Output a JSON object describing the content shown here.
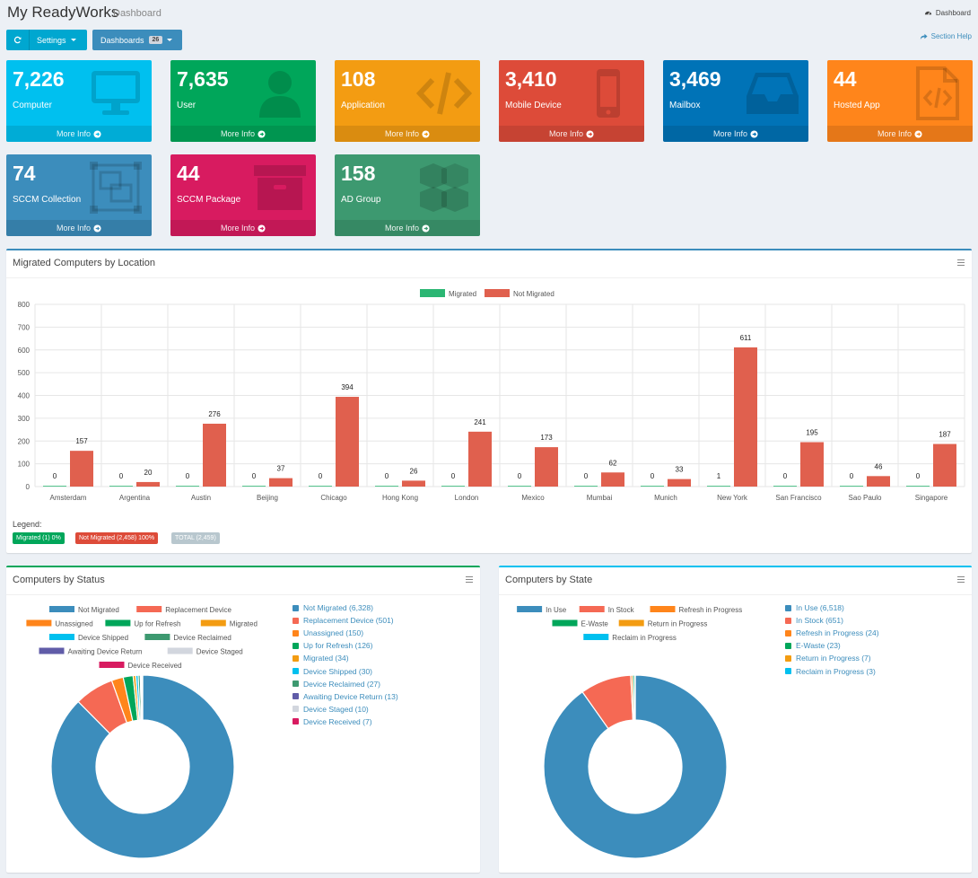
{
  "header": {
    "title": "My ReadyWorks",
    "subtitle": "Dashboard",
    "breadcrumb": "Dashboard"
  },
  "toolbar": {
    "settings_label": "Settings",
    "dashboards_label": "Dashboards",
    "dashboards_count": "26",
    "help_label": "Section Help"
  },
  "tiles": [
    {
      "value": "7,226",
      "label": "Computer",
      "more": "More Info",
      "color": "#00c0ef",
      "icon": "monitor-icon"
    },
    {
      "value": "7,635",
      "label": "User",
      "more": "More Info",
      "color": "#00a65a",
      "icon": "user-icon"
    },
    {
      "value": "108",
      "label": "Application",
      "more": "More Info",
      "color": "#f39c12",
      "icon": "code-icon"
    },
    {
      "value": "3,410",
      "label": "Mobile Device",
      "more": "More Info",
      "color": "#dd4b39",
      "icon": "mobile-icon"
    },
    {
      "value": "3,469",
      "label": "Mailbox",
      "more": "More Info",
      "color": "#0073b7",
      "icon": "inbox-icon"
    },
    {
      "value": "44",
      "label": "Hosted App",
      "more": "More Info",
      "color": "#ff851b",
      "icon": "file-code-icon"
    },
    {
      "value": "74",
      "label": "SCCM Collection",
      "more": "More Info",
      "color": "#3c8dbc",
      "icon": "object-group-icon"
    },
    {
      "value": "44",
      "label": "SCCM Package",
      "more": "More Info",
      "color": "#d81b60",
      "icon": "archive-icon"
    },
    {
      "value": "158",
      "label": "AD Group",
      "more": "More Info",
      "color": "#3d9970",
      "icon": "cubes-icon"
    }
  ],
  "location_box": {
    "title": "Migrated Computers by Location",
    "legend_label": "Legend:",
    "pills": [
      {
        "text": "Migrated (1)  0%",
        "color": "#00a65a"
      },
      {
        "text": "Not Migrated (2,458)  100%",
        "color": "#dd4b39"
      },
      {
        "text": "TOTAL (2,459)",
        "color": "#b8c7ce"
      }
    ]
  },
  "status_box": {
    "title": "Computers by Status",
    "items": [
      {
        "label": "Not Migrated (6,328)"
      },
      {
        "label": "Replacement Device (501)"
      },
      {
        "label": "Unassigned (150)"
      },
      {
        "label": "Up for Refresh (126)"
      },
      {
        "label": "Migrated (34)"
      },
      {
        "label": "Device Shipped (30)"
      },
      {
        "label": "Device Reclaimed (27)"
      },
      {
        "label": "Awaiting Device Return (13)"
      },
      {
        "label": "Device Staged (10)"
      },
      {
        "label": "Device Received (7)"
      }
    ]
  },
  "state_box": {
    "title": "Computers by State",
    "items": [
      {
        "label": "In Use (6,518)"
      },
      {
        "label": "In Stock (651)"
      },
      {
        "label": "Refresh in Progress (24)"
      },
      {
        "label": "E-Waste (23)"
      },
      {
        "label": "Return in Progress (7)"
      },
      {
        "label": "Reclaim in Progress (3)"
      }
    ]
  },
  "chart_data": [
    {
      "type": "bar",
      "title": "Migrated Computers by Location",
      "categories": [
        "Amsterdam",
        "Argentina",
        "Austin",
        "Beijing",
        "Chicago",
        "Hong Kong",
        "London",
        "Mexico",
        "Mumbai",
        "Munich",
        "New York",
        "San Francisco",
        "Sao Paulo",
        "Singapore"
      ],
      "series": [
        {
          "name": "Migrated",
          "color": "#2bb673",
          "values": [
            0,
            0,
            0,
            0,
            0,
            0,
            0,
            0,
            0,
            0,
            1,
            0,
            0,
            0
          ]
        },
        {
          "name": "Not Migrated",
          "color": "#e0604e",
          "values": [
            157,
            20,
            276,
            37,
            394,
            26,
            241,
            173,
            62,
            33,
            611,
            195,
            46,
            187
          ]
        }
      ],
      "ylim": [
        0,
        800
      ],
      "yticks": [
        0,
        100,
        200,
        300,
        400,
        500,
        600,
        700,
        800
      ],
      "grid": true,
      "legend": "top-center"
    },
    {
      "type": "pie",
      "title": "Computers by Status",
      "donut": true,
      "labels": [
        "Not Migrated",
        "Replacement Device",
        "Unassigned",
        "Up for Refresh",
        "Migrated",
        "Device Shipped",
        "Device Reclaimed",
        "Awaiting Device Return",
        "Device Staged",
        "Device Received"
      ],
      "values": [
        6328,
        501,
        150,
        126,
        34,
        30,
        27,
        13,
        10,
        7
      ],
      "colors": [
        "#3c8dbc",
        "#f56954",
        "#ff851b",
        "#00a65a",
        "#f39c12",
        "#00c0ef",
        "#3d9970",
        "#605ca8",
        "#d2d6de",
        "#d81b60"
      ],
      "legend": "top"
    },
    {
      "type": "pie",
      "title": "Computers by State",
      "donut": true,
      "labels": [
        "In Use",
        "In Stock",
        "Refresh in Progress",
        "E-Waste",
        "Return in Progress",
        "Reclaim in Progress"
      ],
      "values": [
        6518,
        651,
        24,
        23,
        7,
        3
      ],
      "colors": [
        "#3c8dbc",
        "#f56954",
        "#ff851b",
        "#00a65a",
        "#f39c12",
        "#00c0ef"
      ],
      "legend": "top"
    }
  ]
}
